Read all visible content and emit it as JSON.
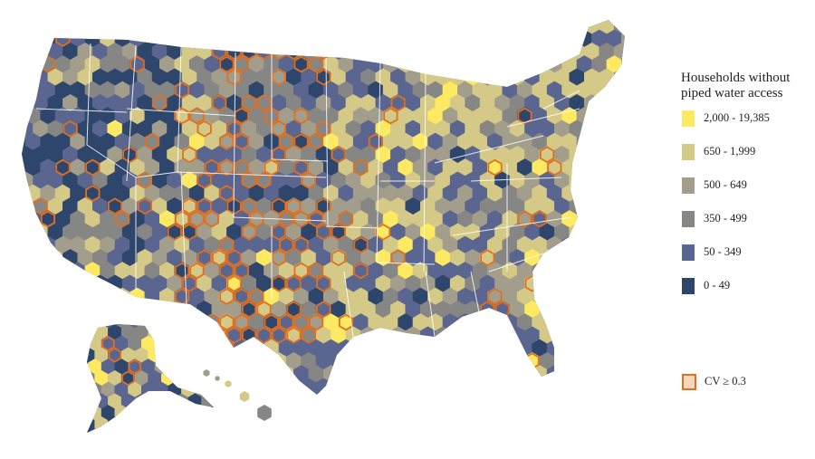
{
  "legend": {
    "title": "Households without piped water access",
    "classes": [
      {
        "label": "2,000 - 19,385",
        "color": "#fde962"
      },
      {
        "label": "650 - 1,999",
        "color": "#d5c988"
      },
      {
        "label": "500 - 649",
        "color": "#a39d8c"
      },
      {
        "label": "350 - 499",
        "color": "#868685"
      },
      {
        "label": "50 - 349",
        "color": "#5a6690"
      },
      {
        "label": "0 - 49",
        "color": "#2f466c"
      }
    ],
    "cv_label": "CV ≥ 0.3",
    "cv_color": "#e0701f"
  },
  "colors": {
    "background": "#ffffff",
    "state_border": "#ffffff",
    "land_base": "#5a6690"
  }
}
